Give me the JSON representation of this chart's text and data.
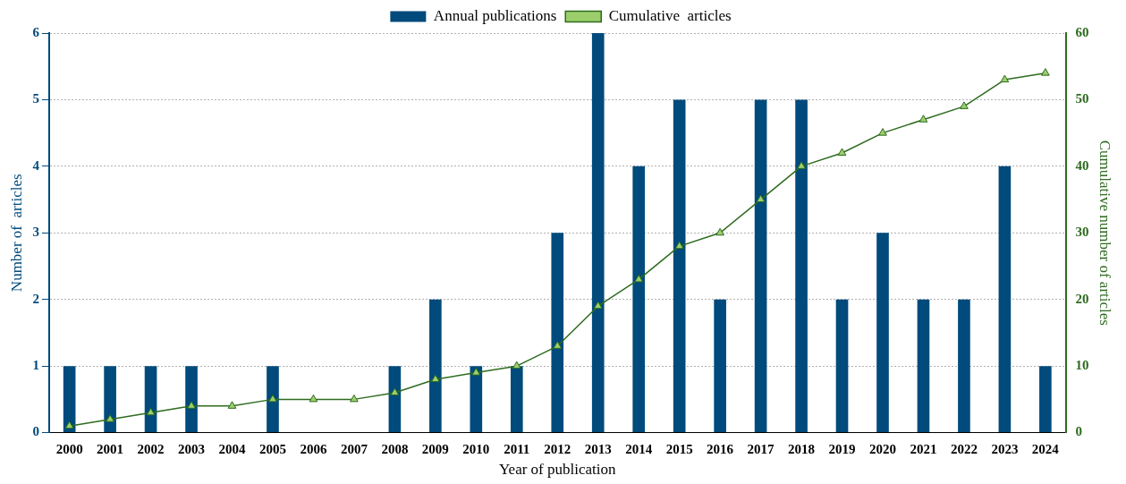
{
  "chart_data": {
    "type": "bar",
    "xlabel": "Year of publication",
    "ylabel": "Number of  articles",
    "y2label": "Cumulative number of articles",
    "categories": [
      "2000",
      "2001",
      "2002",
      "2003",
      "2004",
      "2005",
      "2006",
      "2007",
      "2008",
      "2009",
      "2010",
      "2011",
      "2012",
      "2013",
      "2014",
      "2015",
      "2016",
      "2017",
      "2018",
      "2019",
      "2020",
      "2021",
      "2022",
      "2023",
      "2024"
    ],
    "series": [
      {
        "name": "Annual publications",
        "color": "#004a7c",
        "values": [
          1,
          1,
          1,
          1,
          0,
          1,
          0,
          0,
          1,
          2,
          1,
          1,
          3,
          6,
          4,
          5,
          2,
          5,
          5,
          2,
          3,
          2,
          2,
          4,
          1
        ]
      },
      {
        "name": "Cumulative  articles",
        "type": "line",
        "axis": "y2",
        "color": "#2e6b1f",
        "values": [
          1,
          2,
          3,
          4,
          4,
          5,
          5,
          5,
          6,
          8,
          9,
          10,
          13,
          19,
          23,
          28,
          30,
          35,
          40,
          42,
          45,
          47,
          49,
          53,
          54
        ]
      }
    ],
    "ylim": [
      0,
      6
    ],
    "yticks": [
      0,
      1,
      2,
      3,
      4,
      5,
      6
    ],
    "y2lim": [
      0,
      60
    ],
    "y2ticks": [
      0,
      10,
      20,
      30,
      40,
      50,
      60
    ],
    "grid": "y",
    "legend": "top",
    "marker": "triangle",
    "line_style": "solid"
  }
}
